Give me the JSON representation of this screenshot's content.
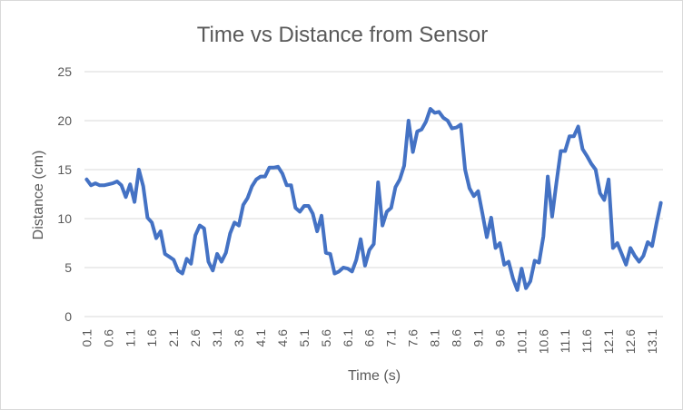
{
  "chart_data": {
    "type": "line",
    "title": "Time vs Distance from Sensor",
    "xlabel": "Time (s)",
    "ylabel": "Distance (cm)",
    "ylim": [
      0,
      25
    ],
    "yticks": [
      "0",
      "5",
      "10",
      "15",
      "20",
      "25"
    ],
    "x_tick_labels": [
      "0.1",
      "0.6",
      "1.1",
      "1.6",
      "2.1",
      "2.6",
      "3.1",
      "3.6",
      "4.1",
      "4.6",
      "5.1",
      "5.6",
      "6.1",
      "6.6",
      "7.1",
      "7.6",
      "8.1",
      "8.6",
      "9.1",
      "9.6",
      "10.1",
      "10.6",
      "11.1",
      "11.6",
      "12.1",
      "12.6",
      "13.1"
    ],
    "grid": true,
    "legend": "none",
    "color": "#4472c4",
    "series": [
      {
        "x": [
          0.1,
          0.2,
          0.3,
          0.4,
          0.5,
          0.6,
          0.7,
          0.8,
          0.9,
          1.0,
          1.1,
          1.2,
          1.3,
          1.4,
          1.5,
          1.6,
          1.7,
          1.8,
          1.9,
          2.0,
          2.1,
          2.2,
          2.3,
          2.4,
          2.5,
          2.6,
          2.7,
          2.8,
          2.9,
          3.0,
          3.1,
          3.2,
          3.3,
          3.4,
          3.5,
          3.6,
          3.7,
          3.8,
          3.9,
          4.0,
          4.1,
          4.2,
          4.3,
          4.4,
          4.5,
          4.6,
          4.7,
          4.8,
          4.9,
          5.0,
          5.1,
          5.2,
          5.3,
          5.4,
          5.5,
          5.6,
          5.7,
          5.8,
          5.9,
          6.0,
          6.1,
          6.2,
          6.3,
          6.4,
          6.5,
          6.6,
          6.7,
          6.8,
          6.9,
          7.0,
          7.1,
          7.2,
          7.3,
          7.4,
          7.5,
          7.6,
          7.7,
          7.8,
          7.9,
          8.0,
          8.1,
          8.2,
          8.3,
          8.4,
          8.5,
          8.6,
          8.7,
          8.8,
          8.9,
          9.0,
          9.1,
          9.2,
          9.3,
          9.4,
          9.5,
          9.6,
          9.7,
          9.8,
          9.9,
          10.0,
          10.1,
          10.2,
          10.3,
          10.4,
          10.5,
          10.6,
          10.7,
          10.8,
          10.9,
          11.0,
          11.1,
          11.2,
          11.3,
          11.4,
          11.5,
          11.6,
          11.7,
          11.8,
          11.9,
          12.0,
          12.1,
          12.2,
          12.3,
          12.4,
          12.5,
          12.6,
          12.7,
          12.8,
          12.9,
          13.0,
          13.1,
          13.2,
          13.3
        ],
        "values": [
          14.0,
          13.4,
          13.6,
          13.4,
          13.4,
          13.5,
          13.6,
          13.8,
          13.4,
          12.2,
          13.5,
          11.7,
          15.0,
          13.3,
          10.1,
          9.6,
          8.0,
          8.7,
          6.4,
          6.1,
          5.8,
          4.7,
          4.4,
          5.9,
          5.4,
          8.3,
          9.3,
          9.0,
          5.6,
          4.7,
          6.4,
          5.6,
          6.5,
          8.5,
          9.6,
          9.3,
          11.4,
          12.1,
          13.3,
          14.0,
          14.3,
          14.3,
          15.2,
          15.2,
          15.3,
          14.6,
          13.4,
          13.4,
          11.1,
          10.7,
          11.3,
          11.3,
          10.5,
          8.7,
          10.3,
          6.5,
          6.4,
          4.4,
          4.6,
          5.0,
          4.9,
          4.6,
          5.8,
          7.9,
          5.2,
          6.8,
          7.4,
          13.7,
          9.3,
          10.7,
          11.1,
          13.2,
          14.0,
          15.4,
          20.0,
          16.8,
          18.9,
          19.1,
          19.9,
          21.2,
          20.8,
          20.9,
          20.3,
          20.0,
          19.2,
          19.3,
          19.6,
          15.0,
          13.1,
          12.3,
          12.8,
          10.5,
          8.1,
          10.1,
          7.0,
          7.5,
          5.3,
          5.6,
          3.9,
          2.7,
          4.9,
          2.9,
          3.6,
          5.7,
          5.5,
          8.2,
          14.3,
          10.2,
          13.7,
          16.9,
          16.9,
          18.4,
          18.4,
          19.4,
          17.1,
          16.4,
          15.6,
          15.0,
          12.6,
          11.9,
          14.0,
          7.0,
          7.5,
          6.4,
          5.3,
          7.0,
          6.2,
          5.6,
          6.2,
          7.6,
          7.2,
          9.5,
          11.6
        ]
      }
    ]
  }
}
